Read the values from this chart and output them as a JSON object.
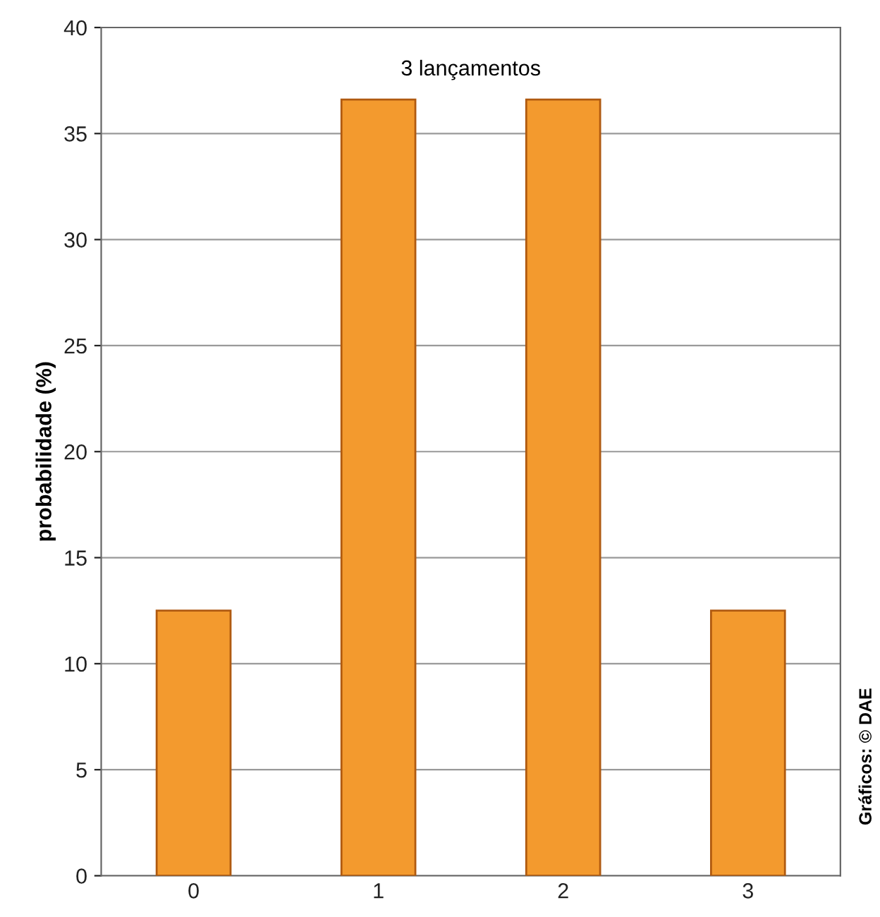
{
  "chart_data": {
    "type": "bar",
    "title": "3 lançamentos",
    "ylabel": "probabilidade (%)",
    "categories": [
      "0",
      "1",
      "2",
      "3"
    ],
    "values": [
      12.5,
      36.6,
      36.6,
      12.5
    ],
    "color": "#f39a2e",
    "ylim": [
      0,
      40
    ],
    "yticks": [
      0,
      5,
      10,
      15,
      20,
      25,
      30,
      35,
      40
    ],
    "grid": "y",
    "annotations": [
      "Gráficos: © DAE"
    ]
  }
}
